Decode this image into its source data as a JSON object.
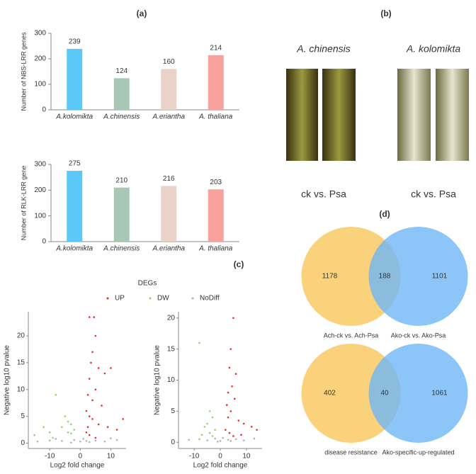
{
  "panel_labels": [
    "(a)",
    "(b)",
    "(c)",
    "(d)"
  ],
  "photo_panel": {
    "titles": [
      "A. chinensis",
      "A. kolomikta"
    ],
    "captions": [
      "ck vs. Psa",
      "ck vs. Psa"
    ]
  },
  "chart_data": [
    {
      "type": "bar",
      "ylabel": "Number of NBS-LRR genes",
      "categories": [
        "A.kolomikta",
        "A.chinensis",
        "A.eriantha",
        "A. thaliana"
      ],
      "values": [
        239,
        124,
        160,
        214
      ],
      "colors": [
        "#5bc8f7",
        "#a9c7b7",
        "#e9d3c9",
        "#f8a29e"
      ],
      "ylim": [
        0,
        300
      ],
      "yticks": [
        0,
        100,
        200,
        300
      ]
    },
    {
      "type": "bar",
      "ylabel": "Number of RLK-LRR gene",
      "categories": [
        "A.kolomikta",
        "A.chinensis",
        "A.eriantha",
        "A. thaliana"
      ],
      "values": [
        275,
        210,
        216,
        203
      ],
      "colors": [
        "#5bc8f7",
        "#a9c7b7",
        "#e9d3c9",
        "#f8a29e"
      ],
      "ylim": [
        0,
        300
      ],
      "yticks": [
        0,
        100,
        200,
        300
      ]
    },
    {
      "type": "scatter",
      "legend_title": "DEGs",
      "xlabel": "Log2 fold change",
      "ylabel": "Negative log10 pvalue",
      "xlim": [
        -17,
        15
      ],
      "ylim": [
        -1,
        24.5
      ],
      "xticks": [
        -10,
        0,
        10
      ],
      "yticks": [
        0,
        5,
        10,
        15,
        20
      ],
      "series": [
        {
          "name": "UP",
          "color": "#e2302f",
          "x": [
            3,
            4.5,
            5,
            4,
            3.5,
            6,
            8,
            10,
            3,
            5,
            2.5,
            4,
            7,
            2,
            3,
            4,
            6,
            9,
            12,
            2,
            3,
            5,
            2.5,
            14
          ],
          "values": [
            23.5,
            23.5,
            20,
            17,
            15,
            14,
            13,
            14,
            12,
            10,
            9,
            8,
            7,
            6,
            5,
            4.5,
            3.5,
            3,
            2.5,
            2,
            1.5,
            1,
            3,
            4.5
          ]
        },
        {
          "name": "DW",
          "color": "#93d26f",
          "x": [
            -12,
            -10,
            -5,
            -4,
            -3,
            -6,
            -2,
            -15,
            -9,
            -3,
            -8,
            -4
          ],
          "values": [
            3,
            2,
            5,
            4,
            3.5,
            3,
            2.5,
            1.5,
            1,
            1.8,
            9,
            2
          ]
        },
        {
          "name": "NoDiff",
          "color": "#b3b3b3",
          "x": [
            -14,
            -10,
            -6,
            -2,
            0,
            1,
            2,
            5,
            8,
            12,
            -3,
            3,
            -8,
            10
          ],
          "values": [
            0.3,
            0.5,
            0.4,
            0.6,
            0.3,
            0.8,
            0.4,
            0.5,
            0.3,
            0.6,
            0.1,
            0.2,
            0.8,
            0.9
          ]
        }
      ]
    },
    {
      "type": "scatter",
      "xlabel": "Log2 fold change",
      "ylabel": "Negative log10 pvalue",
      "xlim": [
        -16,
        16
      ],
      "ylim": [
        -1,
        21
      ],
      "xticks": [
        -10,
        0,
        10
      ],
      "yticks": [
        0,
        5,
        10,
        15,
        20
      ],
      "series": [
        {
          "color": "#e2302f",
          "x": [
            5,
            4,
            3.5,
            6,
            4.5,
            3,
            5.5,
            2.5,
            4,
            3,
            7,
            9,
            12,
            2,
            3.5,
            5,
            8,
            14
          ],
          "values": [
            20,
            15,
            12,
            11,
            9,
            8,
            7,
            6,
            5,
            4,
            3.5,
            3,
            2.5,
            2,
            1.5,
            1,
            1.2,
            2
          ]
        },
        {
          "color": "#93d26f",
          "x": [
            -4,
            -3,
            -5,
            -6,
            -2,
            -4,
            -3,
            -7,
            -8
          ],
          "values": [
            5,
            4,
            3,
            2.5,
            2,
            1.5,
            1,
            1.2,
            16
          ]
        },
        {
          "color": "#b3b3b3",
          "x": [
            -12,
            -8,
            -5,
            -2,
            0,
            1,
            3,
            6,
            9,
            13,
            -1,
            4
          ],
          "values": [
            0.4,
            0.5,
            0.3,
            0.6,
            0.2,
            0.7,
            0.4,
            0.5,
            0.3,
            0.6,
            0.1,
            0.2
          ]
        }
      ]
    },
    {
      "type": "venn",
      "sets": [
        {
          "name": "Ach-ck vs. Ach-Psa",
          "color": "#fad27c"
        },
        {
          "name": "Ako-ck vs. Ako-Psa",
          "color": "#6fb6f6"
        }
      ],
      "values": [
        1178,
        188,
        1101
      ]
    },
    {
      "type": "venn",
      "sets": [
        {
          "name": "disease resistance",
          "color": "#fad27c"
        },
        {
          "name": "Ako-specific-up-regulated",
          "color": "#6fb6f6"
        }
      ],
      "values": [
        402,
        40,
        1061
      ]
    }
  ]
}
